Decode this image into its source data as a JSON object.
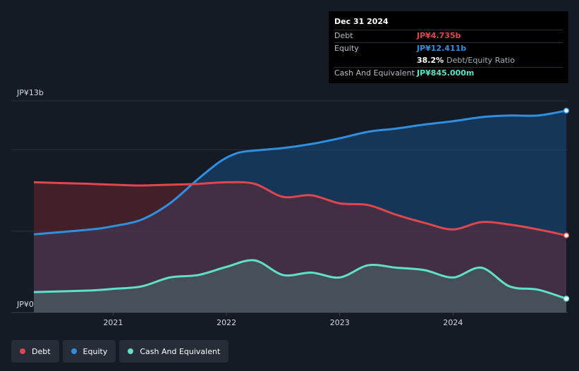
{
  "chart_data": {
    "type": "area",
    "ylabel_top": "JP¥13b",
    "ylabel_bottom": "JP¥0",
    "ylim": [
      0,
      13
    ],
    "xlim": [
      2020.3,
      2025.0
    ],
    "x_ticks": [
      {
        "value": 2021,
        "label": "2021"
      },
      {
        "value": 2022,
        "label": "2022"
      },
      {
        "value": 2023,
        "label": "2023"
      },
      {
        "value": 2024,
        "label": "2024"
      }
    ],
    "series": [
      {
        "name": "Equity",
        "color": "#2f8fe0",
        "x": [
          2020.3,
          2020.8,
          2021.0,
          2021.25,
          2021.5,
          2021.75,
          2021.95,
          2022.1,
          2022.25,
          2022.5,
          2022.75,
          2023.0,
          2023.25,
          2023.5,
          2023.75,
          2024.0,
          2024.25,
          2024.5,
          2024.75,
          2025.0
        ],
        "values": [
          4.8,
          5.1,
          5.3,
          5.7,
          6.7,
          8.2,
          9.3,
          9.8,
          9.95,
          10.1,
          10.35,
          10.7,
          11.1,
          11.3,
          11.55,
          11.75,
          12.0,
          12.1,
          12.1,
          12.4
        ]
      },
      {
        "name": "Debt",
        "color": "#e0464e",
        "x": [
          2020.3,
          2020.8,
          2021.0,
          2021.25,
          2021.5,
          2021.75,
          2022.0,
          2022.25,
          2022.5,
          2022.75,
          2023.0,
          2023.25,
          2023.5,
          2023.75,
          2024.0,
          2024.25,
          2024.5,
          2024.75,
          2025.0
        ],
        "values": [
          8.0,
          7.9,
          7.85,
          7.8,
          7.85,
          7.9,
          8.0,
          7.9,
          7.1,
          7.2,
          6.7,
          6.6,
          6.0,
          5.5,
          5.1,
          5.55,
          5.4,
          5.1,
          4.735
        ]
      },
      {
        "name": "Cash And Equivalent",
        "color": "#5fe0c7",
        "x": [
          2020.3,
          2020.8,
          2021.0,
          2021.25,
          2021.5,
          2021.75,
          2022.0,
          2022.25,
          2022.5,
          2022.75,
          2023.0,
          2023.25,
          2023.5,
          2023.75,
          2024.0,
          2024.25,
          2024.5,
          2024.75,
          2025.0
        ],
        "values": [
          1.25,
          1.35,
          1.45,
          1.6,
          2.15,
          2.3,
          2.8,
          3.2,
          2.3,
          2.45,
          2.15,
          2.9,
          2.75,
          2.6,
          2.15,
          2.75,
          1.6,
          1.4,
          0.845
        ]
      }
    ],
    "tooltip": {
      "date": "Dec 31 2024",
      "rows": [
        {
          "label": "Debt",
          "value": "JP¥4.735b",
          "color": "#e0464e"
        },
        {
          "label": "Equity",
          "value": "JP¥12.411b",
          "color": "#2f8fe0"
        },
        {
          "label": "",
          "value": "38.2%",
          "extra": "Debt/Equity Ratio",
          "color": "#ffffff"
        },
        {
          "label": "Cash And Equivalent",
          "value": "JP¥845.000m",
          "color": "#5fe0c7"
        }
      ]
    },
    "legend": [
      {
        "label": "Debt",
        "color": "#e0464e"
      },
      {
        "label": "Equity",
        "color": "#2f8fe0"
      },
      {
        "label": "Cash And Equivalent",
        "color": "#5fe0c7"
      }
    ]
  }
}
